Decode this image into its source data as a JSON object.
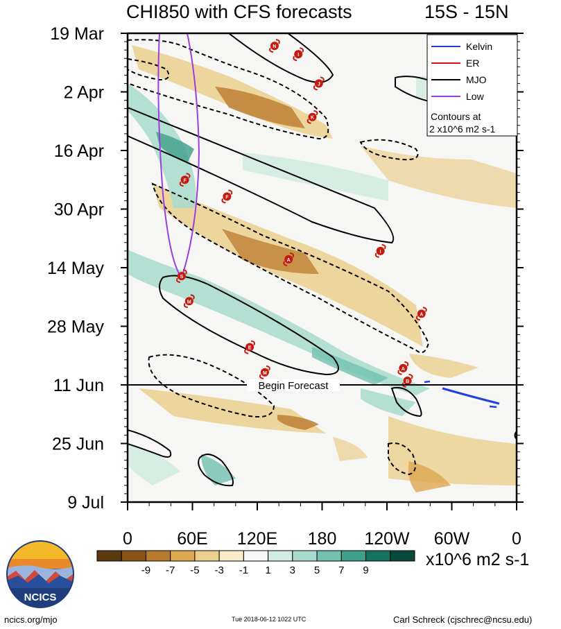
{
  "header": {
    "title": "CHI850 with CFS forecasts",
    "region": "15S - 15N"
  },
  "footer": {
    "site": "ncics.org/mjo",
    "timestamp": "Tue 2018-06-12 1022 UTC",
    "author": "Carl Schreck (cjschrec@ncsu.edu)"
  },
  "logo": {
    "text": "NCICS"
  },
  "chart_data": {
    "type": "heatmap",
    "title": "CHI850 with CFS forecasts",
    "subtitle": "15S - 15N",
    "x_ticks": [
      "0",
      "60E",
      "120E",
      "180",
      "120W",
      "60W",
      "0"
    ],
    "x_tick_lon": [
      0,
      60,
      120,
      180,
      240,
      300,
      360
    ],
    "y_ticks": [
      "19 Mar",
      "2 Apr",
      "16 Apr",
      "30 Apr",
      "14 May",
      "28 May",
      "11 Jun",
      "25 Jun",
      "9 Jul"
    ],
    "y_tick_day": [
      0,
      14,
      28,
      42,
      56,
      70,
      84,
      98,
      112
    ],
    "begin_forecast_label": "Begin Forecast",
    "begin_forecast_day": 84,
    "colorbar": {
      "labels": [
        "-9",
        "-7",
        "-5",
        "-3",
        "-1",
        "1",
        "3",
        "5",
        "7",
        "9"
      ],
      "colors": [
        "#5c3a10",
        "#8a5418",
        "#b97a2c",
        "#dca850",
        "#ebcf8e",
        "#f7ebc8",
        "#f6f6f4",
        "#d3ece2",
        "#a8dacd",
        "#72c1b0",
        "#3e9f8b",
        "#16735f",
        "#0a4a3c"
      ],
      "unit": "x10^6 m2 s-1"
    },
    "legend": {
      "entries": [
        {
          "name": "Kelvin",
          "color": "#1f3ee0"
        },
        {
          "name": "ER",
          "color": "#e01010"
        },
        {
          "name": "MJO",
          "color": "#000000"
        },
        {
          "name": "Low",
          "color": "#9a3ee0"
        }
      ],
      "note_line1": "Contours at",
      "note_line2": "2 x10^6 m2 s-1",
      "placement": "top-right"
    },
    "cyclones": [
      {
        "label": "N",
        "lon": 136,
        "day": 3
      },
      {
        "label": "I",
        "lon": 158,
        "day": 5
      },
      {
        "label": "J",
        "lon": 177,
        "day": 12
      },
      {
        "label": "K",
        "lon": 171,
        "day": 20
      },
      {
        "label": "F",
        "lon": 53,
        "day": 35
      },
      {
        "label": "F",
        "lon": 92,
        "day": 39
      },
      {
        "label": "I",
        "lon": 234,
        "day": 52
      },
      {
        "label": "A",
        "lon": 149,
        "day": 54
      },
      {
        "label": "S",
        "lon": 50,
        "day": 58
      },
      {
        "label": "M",
        "lon": 57,
        "day": 64
      },
      {
        "label": "A",
        "lon": 272,
        "day": 67
      },
      {
        "label": "E",
        "lon": 113,
        "day": 75
      },
      {
        "label": "A",
        "lon": 255,
        "day": 80
      },
      {
        "label": "M",
        "lon": 127,
        "day": 81
      },
      {
        "label": "B",
        "lon": 259,
        "day": 83
      }
    ]
  }
}
